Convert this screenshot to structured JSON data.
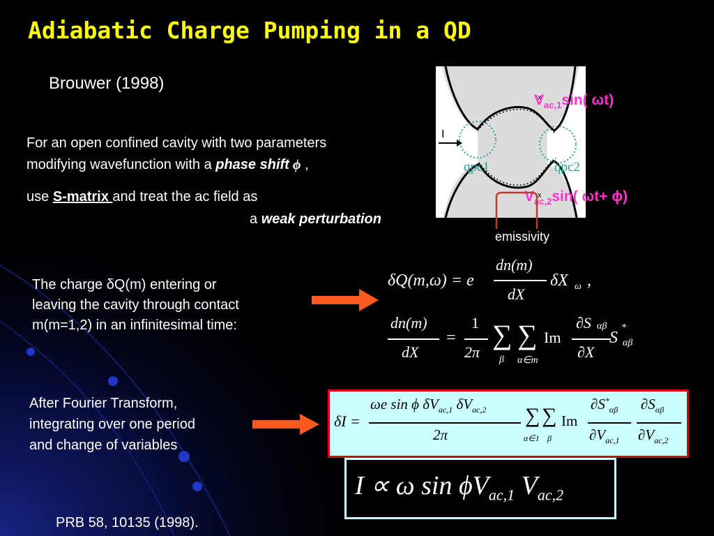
{
  "title": "Adiabatic Charge Pumping in a QD",
  "subtitle": "Brouwer (1998)",
  "intro": {
    "line1": "For an open confined cavity with two parameters",
    "line2_prefix": "modifying wavefunction with a ",
    "line2_emph": "phase shift",
    "line2_symbol": "ϕ",
    "line2_suffix": " ,",
    "line3_prefix": "use ",
    "line3_smatrix": "S-matrix ",
    "line3_suffix": "and treat the ac field as",
    "line4_prefix": "a ",
    "line4_emph": "weak perturbation"
  },
  "figure": {
    "label_I": "I",
    "qpc1": "qpc1",
    "qpc2": "qpc2",
    "vac1_V": "V",
    "vac1_sub": "ac,1",
    "vac1_tail": "sin( ωt)",
    "vac2_V": "V",
    "vac2_sub": "ac,2",
    "vac2_tail": "sin( ωt+ ϕ)",
    "x1": "x",
    "x2": "x",
    "emissivity": "emissivity"
  },
  "charge_text": {
    "line1": "The charge δQ(m) entering or",
    "line2": "leaving the cavity through contact",
    "line3": "m(m=1,2) in an infinitesimal time:"
  },
  "fourier_text": {
    "line1": "After Fourier Transform,",
    "line2": "integrating over one period",
    "line3": "and change of variables"
  },
  "equations": {
    "eq1_lhs": "δQ(m,ω) = e",
    "eq1_num": "dn(m)",
    "eq1_den": "dX",
    "eq1_tail": "δX",
    "eq1_tail_sub": "ω",
    "eq1_comma": ",",
    "eq2_num": "dn(m)",
    "eq2_den": "dX",
    "eq2_eq": "=",
    "eq2_c_num": "1",
    "eq2_c_den": "2π",
    "eq2_sum1_sub": "β",
    "eq2_sum2_sub": "α∈m",
    "eq2_im": "Im",
    "eq2_pnum": "∂S",
    "eq2_pnum_sub": "αβ",
    "eq2_pden": "∂X",
    "eq2_S": "S",
    "eq2_S_sup": "*",
    "eq2_S_sub": "αβ",
    "eq3_lhs": "δI =",
    "eq3_num": "ωe sin ϕ δV",
    "eq3_num_sub1": "ac,1",
    "eq3_num_mid": " δV",
    "eq3_num_sub2": "ac,2",
    "eq3_den": "2π",
    "eq3_sum1_sub": "α∈1",
    "eq3_sum2_sub": "β",
    "eq3_im": "Im",
    "eq3_p1_num": "∂S",
    "eq3_p1_sup": "*",
    "eq3_p1_sub": "αβ",
    "eq3_p1_den": "∂V",
    "eq3_p1_den_sub": "ac,1",
    "eq3_p2_num": "∂S",
    "eq3_p2_sub": "αβ",
    "eq3_p2_den": "∂V",
    "eq3_p2_den_sub": "ac,2",
    "eq4_main": "I ∝ ω sin ϕV",
    "eq4_sub1": "ac,1",
    "eq4_V2": " V",
    "eq4_sub2": "ac,2"
  },
  "reference": "PRB 58, 10135 (1998).",
  "colors": {
    "background": "#000000",
    "title": "#ffff00",
    "magenta": "#ff33cc",
    "arrow": "#ff5a1f",
    "box_fill": "#ccffff",
    "box_border_red": "#e00000",
    "qpc_dots": "#2a9d8f",
    "bracket": "#c0392b"
  }
}
